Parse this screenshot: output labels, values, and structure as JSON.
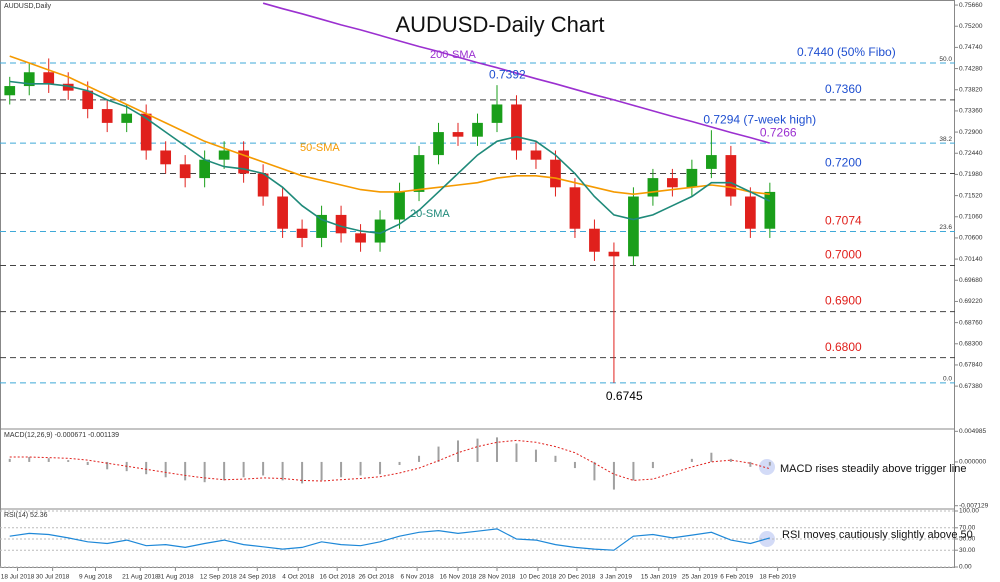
{
  "chart_data": [
    {
      "type": "candlestick",
      "title": "AUDUSD-Daily Chart",
      "subtitle": "AUDUSD,Daily",
      "xlim": [
        -0.5,
        48.5
      ],
      "ylim": [
        0.6647,
        0.7577
      ],
      "xticks": [
        {
          "value": 0.4,
          "label": "18 Jul 2018"
        },
        {
          "value": 2.2,
          "label": "30 Jul 2018"
        },
        {
          "value": 4.4,
          "label": "9 Aug 2018"
        },
        {
          "value": 6.7,
          "label": "21 Aug 2018"
        },
        {
          "value": 8.5,
          "label": "31 Aug 2018"
        },
        {
          "value": 10.7,
          "label": "12 Sep 2018"
        },
        {
          "value": 12.7,
          "label": "24 Sep 2018"
        },
        {
          "value": 14.8,
          "label": "4 Oct 2018"
        },
        {
          "value": 16.8,
          "label": "16 Oct 2018"
        },
        {
          "value": 18.8,
          "label": "26 Oct 2018"
        },
        {
          "value": 20.9,
          "label": "6 Nov 2018"
        },
        {
          "value": 23.0,
          "label": "16 Nov 2018"
        },
        {
          "value": 25.0,
          "label": "28 Nov 2018"
        },
        {
          "value": 27.1,
          "label": "10 Dec 2018"
        },
        {
          "value": 29.1,
          "label": "20 Dec 2018"
        },
        {
          "value": 31.1,
          "label": "3 Jan 2019"
        },
        {
          "value": 33.3,
          "label": "15 Jan 2019"
        },
        {
          "value": 35.4,
          "label": "25 Jan 2019"
        },
        {
          "value": 37.3,
          "label": "6 Feb 2019"
        },
        {
          "value": 39.4,
          "label": "18 Feb 2019"
        }
      ],
      "yticks": [
        {
          "value": 0.7566,
          "label": "0.75660"
        },
        {
          "value": 0.752,
          "label": "0.75200"
        },
        {
          "value": 0.7474,
          "label": "0.74740"
        },
        {
          "value": 0.7428,
          "label": "0.74280"
        },
        {
          "value": 0.7382,
          "label": "0.73820"
        },
        {
          "value": 0.7336,
          "label": "0.73360"
        },
        {
          "value": 0.729,
          "label": "0.72900"
        },
        {
          "value": 0.7244,
          "label": "0.72440"
        },
        {
          "value": 0.7198,
          "label": "0.71980"
        },
        {
          "value": 0.7152,
          "label": "0.71520"
        },
        {
          "value": 0.7106,
          "label": "0.71060"
        },
        {
          "value": 0.706,
          "label": "0.70600"
        },
        {
          "value": 0.7014,
          "label": "0.70140"
        },
        {
          "value": 0.6968,
          "label": "0.69680"
        },
        {
          "value": 0.6922,
          "label": "0.69220"
        },
        {
          "value": 0.6876,
          "label": "0.68760"
        },
        {
          "value": 0.683,
          "label": "0.68300"
        },
        {
          "value": 0.6784,
          "label": "0.67840"
        },
        {
          "value": 0.6738,
          "label": "0.67380"
        }
      ],
      "up_color": "#1a9e1a",
      "down_color": "#e0201c",
      "candles": {
        "open": [
          0.737,
          0.739,
          0.742,
          0.7395,
          0.738,
          0.734,
          0.731,
          0.733,
          0.725,
          0.722,
          0.719,
          0.723,
          0.725,
          0.72,
          0.715,
          0.708,
          0.706,
          0.711,
          0.707,
          0.705,
          0.71,
          0.716,
          0.724,
          0.729,
          0.728,
          0.731,
          0.735,
          0.725,
          0.723,
          0.717,
          0.708,
          0.703,
          0.702,
          0.715,
          0.719,
          0.717,
          0.721,
          0.724,
          0.715,
          0.708
        ],
        "high": [
          0.741,
          0.744,
          0.745,
          0.742,
          0.74,
          0.736,
          0.735,
          0.735,
          0.727,
          0.724,
          0.725,
          0.727,
          0.727,
          0.722,
          0.717,
          0.71,
          0.713,
          0.713,
          0.709,
          0.712,
          0.718,
          0.726,
          0.731,
          0.731,
          0.733,
          0.7392,
          0.737,
          0.727,
          0.725,
          0.719,
          0.71,
          0.705,
          0.717,
          0.721,
          0.721,
          0.723,
          0.7294,
          0.726,
          0.717,
          0.718
        ],
        "low": [
          0.735,
          0.737,
          0.7375,
          0.736,
          0.732,
          0.729,
          0.729,
          0.723,
          0.72,
          0.717,
          0.717,
          0.721,
          0.718,
          0.713,
          0.706,
          0.704,
          0.704,
          0.705,
          0.703,
          0.703,
          0.708,
          0.714,
          0.722,
          0.726,
          0.726,
          0.729,
          0.723,
          0.721,
          0.715,
          0.706,
          0.701,
          0.6745,
          0.7,
          0.713,
          0.715,
          0.715,
          0.719,
          0.713,
          0.706,
          0.706
        ],
        "close": [
          0.739,
          0.742,
          0.7395,
          0.738,
          0.734,
          0.731,
          0.733,
          0.725,
          0.722,
          0.719,
          0.723,
          0.725,
          0.72,
          0.715,
          0.708,
          0.706,
          0.711,
          0.707,
          0.705,
          0.71,
          0.716,
          0.724,
          0.729,
          0.728,
          0.731,
          0.735,
          0.725,
          0.723,
          0.717,
          0.708,
          0.703,
          0.702,
          0.715,
          0.719,
          0.717,
          0.721,
          0.724,
          0.715,
          0.708,
          0.716
        ]
      },
      "series": [
        {
          "name": "200-SMA",
          "color": "#9b30d0",
          "values": [
            null,
            null,
            null,
            null,
            null,
            null,
            null,
            null,
            null,
            null,
            null,
            null,
            null,
            0.757,
            0.7558,
            0.7547,
            0.7535,
            0.7523,
            0.7512,
            0.75,
            0.7488,
            0.7476,
            0.7465,
            0.7453,
            0.7441,
            0.743,
            0.7418,
            0.7406,
            0.7395,
            0.7383,
            0.7371,
            0.736,
            0.7348,
            0.7336,
            0.7324,
            0.7313,
            0.7301,
            0.7289,
            0.7278,
            0.7266
          ]
        },
        {
          "name": "50-SMA",
          "color": "#f59a00",
          "values": [
            0.7455,
            0.744,
            0.7425,
            0.741,
            0.739,
            0.737,
            0.735,
            0.733,
            0.731,
            0.729,
            0.727,
            0.7255,
            0.724,
            0.7225,
            0.721,
            0.7195,
            0.7185,
            0.7175,
            0.7165,
            0.716,
            0.716,
            0.7165,
            0.717,
            0.7175,
            0.718,
            0.719,
            0.7195,
            0.7195,
            0.719,
            0.718,
            0.717,
            0.716,
            0.7155,
            0.716,
            0.7165,
            0.717,
            0.7175,
            0.717,
            0.716,
            0.7155
          ]
        },
        {
          "name": "20-SMA",
          "color": "#1f8a7a",
          "values": [
            0.74,
            0.7395,
            0.7395,
            0.739,
            0.738,
            0.736,
            0.7345,
            0.732,
            0.729,
            0.726,
            0.723,
            0.7215,
            0.721,
            0.72,
            0.717,
            0.713,
            0.71,
            0.7085,
            0.7075,
            0.707,
            0.709,
            0.712,
            0.716,
            0.72,
            0.724,
            0.727,
            0.728,
            0.727,
            0.724,
            0.72,
            0.715,
            0.711,
            0.71,
            0.711,
            0.713,
            0.715,
            0.718,
            0.718,
            0.716,
            0.714
          ]
        }
      ],
      "levels": [
        {
          "value": 0.744,
          "label": "0.7440 (50% Fibo)",
          "fib": "50.0",
          "color": "#3fa9d8",
          "label_color": "#1f4fd0"
        },
        {
          "value": 0.736,
          "label": "0.7360",
          "color": "#444444",
          "label_color": "#1f4fd0"
        },
        {
          "value": 0.7266,
          "fib": "38.2",
          "color": "#3fa9d8"
        },
        {
          "value": 0.72,
          "label": "0.7200",
          "color": "#444444",
          "label_color": "#1f4fd0"
        },
        {
          "value": 0.7074,
          "label": "0.7074",
          "fib": "23.6",
          "color": "#3fa9d8",
          "label_color": "#e0201c"
        },
        {
          "value": 0.7,
          "label": "0.7000",
          "color": "#444444",
          "label_color": "#e0201c"
        },
        {
          "value": 0.69,
          "label": "0.6900",
          "color": "#444444",
          "label_color": "#e0201c"
        },
        {
          "value": 0.68,
          "label": "0.6800",
          "color": "#444444",
          "label_color": "#e0201c"
        },
        {
          "value": 0.6745,
          "fib": "0.0",
          "color": "#3fa9d8"
        }
      ],
      "annotations": [
        {
          "value": 0.7392,
          "label": "0.7392",
          "color": "#1f4fd0"
        },
        {
          "value": 0.7294,
          "label": "0.7294 (7-week high)",
          "color": "#1f4fd0"
        },
        {
          "value": 0.7266,
          "label": "0.7266",
          "color": "#9b30d0"
        },
        {
          "value": 0.6745,
          "label": "0.6745",
          "color": "#000000"
        }
      ]
    },
    {
      "type": "macd",
      "title": "MACD(12,26,9) -0.000671 -0.001139",
      "annotation": "MACD rises steadily above trigger line",
      "ylim": [
        -0.0075,
        0.0052
      ],
      "yticks": [
        0.004985,
        {
          "value": 0,
          "label": "0.000000"
        },
        -0.007129
      ],
      "histogram": {
        "color": "#a0a0a0",
        "values": [
          0.0005,
          0.0008,
          0.0006,
          0.0003,
          -0.0005,
          -0.0012,
          -0.0015,
          -0.002,
          -0.0025,
          -0.003,
          -0.0033,
          -0.003,
          -0.0025,
          -0.0022,
          -0.003,
          -0.0035,
          -0.003,
          -0.0025,
          -0.0022,
          -0.002,
          -0.0005,
          0.001,
          0.0025,
          0.0035,
          0.0038,
          0.004,
          0.003,
          0.002,
          0.001,
          -0.001,
          -0.003,
          -0.0045,
          -0.003,
          -0.001,
          0.0,
          0.0005,
          0.0015,
          0.0005,
          -0.0008,
          -0.0006
        ]
      },
      "signal": {
        "color": "#e0201c",
        "values": [
          0.0008,
          0.0008,
          0.0007,
          0.0006,
          0.0003,
          -0.0002,
          -0.0007,
          -0.0012,
          -0.0017,
          -0.0022,
          -0.0026,
          -0.0029,
          -0.0028,
          -0.0026,
          -0.0027,
          -0.003,
          -0.0031,
          -0.0029,
          -0.0027,
          -0.0024,
          -0.0018,
          -0.001,
          0.0002,
          0.0015,
          0.0025,
          0.0032,
          0.0035,
          0.0032,
          0.0025,
          0.0015,
          -0.0002,
          -0.002,
          -0.003,
          -0.0028,
          -0.0018,
          -0.0008,
          0.0,
          0.0003,
          -0.0002,
          -0.0011
        ]
      }
    },
    {
      "type": "rsi",
      "title": "RSI(14) 52.36",
      "annotation": "RSI moves cautiously slightly above 50",
      "color": "#1e88d8",
      "ylim": [
        0,
        100
      ],
      "yticks": [
        {
          "value": 100,
          "label": "100.00"
        },
        {
          "value": 70,
          "label": "70.00"
        },
        {
          "value": 50,
          "label": "50.00"
        },
        {
          "value": 30,
          "label": "30.00"
        },
        {
          "value": 0,
          "label": "0.00"
        }
      ],
      "values": [
        55,
        60,
        58,
        52,
        45,
        42,
        48,
        38,
        40,
        35,
        42,
        48,
        40,
        36,
        32,
        35,
        45,
        40,
        38,
        45,
        55,
        62,
        65,
        60,
        64,
        68,
        50,
        48,
        40,
        35,
        32,
        30,
        55,
        58,
        52,
        57,
        62,
        48,
        42,
        52
      ]
    }
  ]
}
